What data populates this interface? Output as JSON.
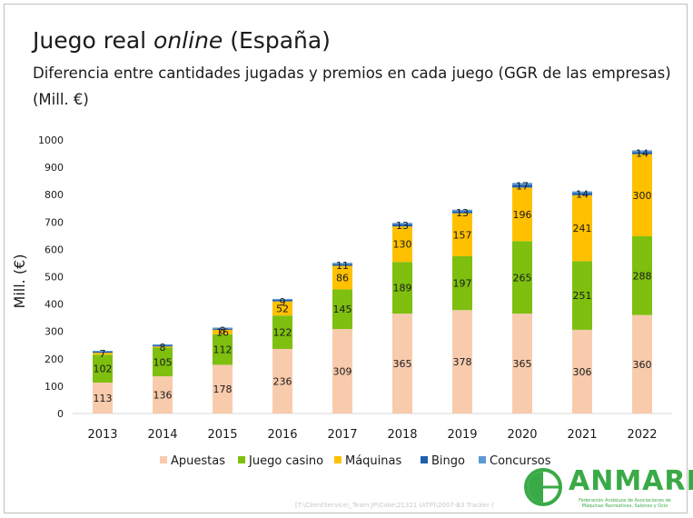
{
  "title": {
    "main": "Juego real ",
    "italic": "online",
    "rest": " (España)"
  },
  "subtitle": {
    "line1": "Diferencia entre cantidades jugadas y premios en cada juego (GGR de las empresas)",
    "line2": "(Mill. €)"
  },
  "footer_note": "[T:\\ClientService\\_Team JP\\Coke\\21321 (ATP)\\2007-B3 Tracker (",
  "logo": {
    "name": "ANMARE",
    "subtitle": "Federación Andaluza de Asociaciones de Máquinas Recreativas, Salones y Ocio"
  },
  "colors": {
    "Apuestas": "#f8cbad",
    "Juego casino": "#7ebf0f",
    "Máquinas": "#ffc000",
    "Bingo": "#1f5fae",
    "Concursos": "#5b9bd5",
    "logo_green": "#3aaa47"
  },
  "chart_data": {
    "type": "bar",
    "stacked": true,
    "categories": [
      "2013",
      "2014",
      "2015",
      "2016",
      "2017",
      "2018",
      "2019",
      "2020",
      "2021",
      "2022"
    ],
    "ylabel": "Mill. (€)",
    "ylim": [
      0,
      1000
    ],
    "yticks": [
      0,
      100,
      200,
      300,
      400,
      500,
      600,
      700,
      800,
      900,
      1000
    ],
    "legend_position": "bottom",
    "series": [
      {
        "name": "Apuestas",
        "values": [
          113,
          136,
          178,
          236,
          309,
          365,
          378,
          365,
          306,
          360
        ],
        "labels": [
          "113",
          "136",
          "178",
          "236",
          "309",
          "365",
          "378",
          "365",
          "306",
          "360"
        ]
      },
      {
        "name": "Juego casino",
        "values": [
          102,
          105,
          112,
          122,
          145,
          189,
          197,
          265,
          251,
          288
        ],
        "labels": [
          "102",
          "105",
          "112",
          "122",
          "145",
          "189",
          "197",
          "265",
          "251",
          "288"
        ]
      },
      {
        "name": "Máquinas",
        "values": [
          7,
          4,
          16,
          52,
          86,
          130,
          157,
          196,
          241,
          300
        ],
        "labels": [
          "",
          "",
          "16",
          "52",
          "86",
          "130",
          "157",
          "196",
          "241",
          "300"
        ]
      },
      {
        "name": "Bingo",
        "values": [
          4,
          4,
          4,
          6,
          6,
          7,
          7,
          10,
          8,
          8
        ],
        "labels": [
          "",
          "",
          "",
          "",
          "",
          "",
          "",
          "",
          "",
          ""
        ]
      },
      {
        "name": "Concursos",
        "values": [
          3,
          4,
          4,
          3,
          5,
          6,
          6,
          7,
          6,
          6
        ],
        "labels": [
          "7",
          "8",
          "8",
          "9",
          "11",
          "13",
          "13",
          "17",
          "14",
          "14"
        ]
      }
    ]
  }
}
